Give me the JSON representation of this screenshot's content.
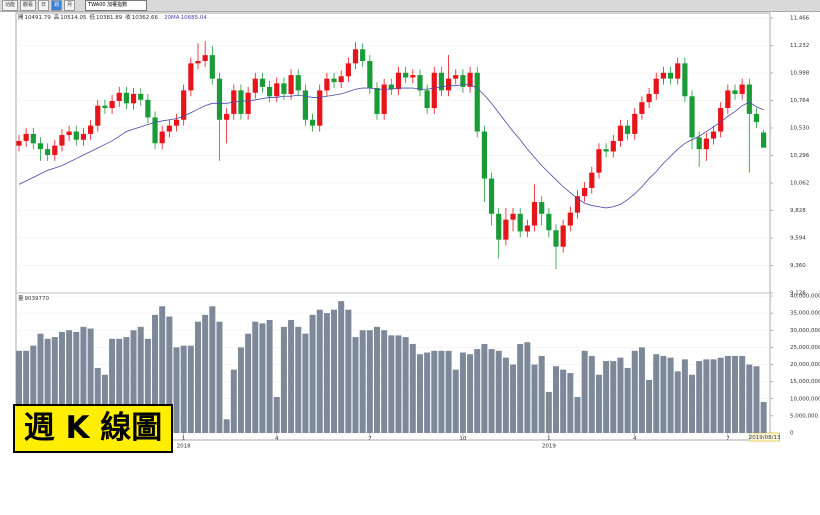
{
  "toolbar": {
    "buttons": [
      "功能",
      "觀看",
      "日",
      "週",
      "月"
    ],
    "symbol": "TWA00 加權指數"
  },
  "badge": "週 K 線圖",
  "chart_data": {
    "type": "candlestick",
    "categories": [
      null,
      null,
      null,
      null,
      null,
      null,
      null,
      null,
      null,
      null,
      null,
      null,
      null,
      null,
      null,
      null,
      null,
      null,
      null,
      null,
      null,
      null,
      null,
      "1",
      null,
      null,
      null,
      null,
      null,
      null,
      null,
      null,
      null,
      null,
      null,
      null,
      "4",
      null,
      null,
      null,
      null,
      null,
      null,
      null,
      null,
      null,
      null,
      null,
      null,
      "7",
      null,
      null,
      null,
      null,
      null,
      null,
      null,
      null,
      null,
      null,
      null,
      null,
      "10",
      null,
      null,
      null,
      null,
      null,
      null,
      null,
      null,
      null,
      null,
      null,
      "1",
      null,
      null,
      null,
      null,
      null,
      null,
      null,
      null,
      null,
      null,
      null,
      "4",
      null,
      null,
      null,
      null,
      null,
      null,
      null,
      null,
      null,
      null,
      null,
      null,
      "7",
      null,
      null,
      null,
      null,
      "2019/08/13"
    ],
    "year_labels": [
      {
        "category": 23,
        "label": "2018"
      },
      {
        "category": 74,
        "label": "2019"
      }
    ],
    "ohlc_labels": [
      "開",
      "高",
      "低",
      "收"
    ],
    "open": [
      10380,
      10420,
      10480,
      10400,
      10350,
      10300,
      10380,
      10470,
      10500,
      10430,
      10480,
      10550,
      10720,
      10700,
      10760,
      10830,
      10740,
      10820,
      10770,
      10620,
      10400,
      10500,
      10550,
      10600,
      10850,
      11080,
      11100,
      11150,
      10950,
      10600,
      10650,
      10850,
      10650,
      10830,
      10950,
      10880,
      10800,
      10910,
      10820,
      10980,
      10850,
      10600,
      10550,
      10850,
      10950,
      10920,
      10970,
      11080,
      11200,
      11100,
      10870,
      10650,
      10900,
      10860,
      11000,
      10960,
      10980,
      10850,
      10700,
      11000,
      10850,
      10950,
      10980,
      10880,
      11000,
      10500,
      10100,
      9800,
      9580,
      9750,
      9800,
      9650,
      9700,
      9900,
      9800,
      9660,
      9520,
      9700,
      9810,
      9950,
      10020,
      10150,
      10350,
      10330,
      10420,
      10550,
      10480,
      10650,
      10750,
      10820,
      10950,
      11000,
      10950,
      11080,
      10800,
      10450,
      10350,
      10440,
      10500,
      10700,
      10850,
      10820,
      10900,
      10650,
      10491.79
    ],
    "high": [
      10470,
      10530,
      10530,
      10450,
      10400,
      10430,
      10520,
      10550,
      10550,
      10530,
      10600,
      10770,
      10770,
      10810,
      10880,
      10880,
      10870,
      10870,
      10820,
      10670,
      10550,
      10600,
      10650,
      10900,
      11130,
      11250,
      11270,
      11230,
      11000,
      10700,
      10900,
      10900,
      10880,
      11000,
      11000,
      10930,
      10960,
      10960,
      11030,
      11030,
      10900,
      10650,
      10900,
      11000,
      11000,
      11020,
      11130,
      11260,
      11250,
      11150,
      10920,
      10950,
      10950,
      11050,
      11050,
      11030,
      11030,
      10900,
      11050,
      11050,
      11150,
      11030,
      11030,
      11050,
      11050,
      10550,
      10150,
      9850,
      9850,
      9850,
      9850,
      9750,
      10050,
      9950,
      9850,
      9710,
      9750,
      9860,
      10000,
      10070,
      10200,
      10400,
      10400,
      10470,
      10600,
      10600,
      10700,
      10800,
      10870,
      11000,
      11050,
      11050,
      11130,
      11130,
      10850,
      10500,
      10490,
      10550,
      10750,
      10900,
      10900,
      10950,
      10950,
      10700,
      10514.05
    ],
    "low": [
      10330,
      10370,
      10350,
      10250,
      10250,
      10250,
      10330,
      10420,
      10380,
      10380,
      10430,
      10500,
      10650,
      10650,
      10710,
      10690,
      10690,
      10720,
      10570,
      10350,
      10350,
      10450,
      10500,
      10550,
      10800,
      11030,
      11050,
      10900,
      10250,
      10400,
      10600,
      10600,
      10600,
      10780,
      10830,
      10750,
      10750,
      10770,
      10770,
      10800,
      10550,
      10500,
      10500,
      10800,
      10870,
      10870,
      10920,
      11030,
      11050,
      10820,
      10600,
      10600,
      10810,
      10810,
      10910,
      10910,
      10800,
      10650,
      10650,
      10800,
      10800,
      10900,
      10830,
      10830,
      10450,
      9900,
      9700,
      9420,
      9530,
      9650,
      9600,
      9600,
      9650,
      9700,
      9600,
      9330,
      9470,
      9650,
      9760,
      9900,
      9970,
      10100,
      10280,
      10280,
      10370,
      10430,
      10430,
      10600,
      10700,
      10770,
      10900,
      10900,
      10900,
      10750,
      10350,
      10200,
      10250,
      10390,
      10450,
      10650,
      10770,
      10770,
      10150,
      10530,
      10381.89
    ],
    "close": [
      10420,
      10480,
      10400,
      10350,
      10300,
      10380,
      10470,
      10500,
      10430,
      10480,
      10550,
      10720,
      10700,
      10760,
      10830,
      10740,
      10820,
      10770,
      10620,
      10400,
      10500,
      10550,
      10600,
      10850,
      11080,
      11100,
      11150,
      10950,
      10600,
      10650,
      10850,
      10650,
      10830,
      10950,
      10880,
      10800,
      10910,
      10820,
      10980,
      10850,
      10600,
      10550,
      10850,
      10950,
      10920,
      10970,
      11080,
      11200,
      11100,
      10870,
      10650,
      10900,
      10860,
      11000,
      10960,
      10980,
      10850,
      10700,
      11000,
      10850,
      10950,
      10980,
      10880,
      11000,
      10500,
      10100,
      9800,
      9580,
      9750,
      9800,
      9650,
      9700,
      9900,
      9800,
      9660,
      9520,
      9700,
      9810,
      9950,
      10020,
      10150,
      10350,
      10330,
      10420,
      10550,
      10480,
      10650,
      10750,
      10820,
      10950,
      11000,
      10950,
      11080,
      10800,
      10450,
      10350,
      10440,
      10500,
      10700,
      10850,
      10820,
      10900,
      10650,
      10580,
      10362.66
    ],
    "up_color": "#e8141b",
    "down_color": "#1a9b38",
    "ylim": [
      9126,
      11466
    ],
    "yticks": [
      {
        "value": 9126,
        "label": "9,126"
      },
      {
        "value": 9360,
        "label": "9,360"
      },
      {
        "value": 9594,
        "label": "9,594"
      },
      {
        "value": 9828,
        "label": "9,828"
      },
      {
        "value": 10062,
        "label": "10,062"
      },
      {
        "value": 10296,
        "label": "10,296"
      },
      {
        "value": 10530,
        "label": "10,530"
      },
      {
        "value": 10764,
        "label": "10,764"
      },
      {
        "value": 10998,
        "label": "10,998"
      },
      {
        "value": 11232,
        "label": "11,232"
      },
      {
        "value": 11466,
        "label": "11,466"
      }
    ],
    "grid": true,
    "ma": {
      "name": "20MA",
      "color": "#4a4aa8",
      "values": [
        10050,
        10080,
        10110,
        10140,
        10170,
        10190,
        10210,
        10240,
        10270,
        10300,
        10330,
        10360,
        10390,
        10420,
        10460,
        10500,
        10520,
        10540,
        10560,
        10580,
        10590,
        10600,
        10610,
        10630,
        10660,
        10690,
        10720,
        10740,
        10740,
        10740,
        10750,
        10760,
        10760,
        10770,
        10780,
        10790,
        10790,
        10800,
        10800,
        10810,
        10800,
        10790,
        10790,
        10800,
        10810,
        10820,
        10840,
        10860,
        10870,
        10870,
        10860,
        10860,
        10860,
        10870,
        10870,
        10870,
        10860,
        10860,
        10870,
        10880,
        10890,
        10890,
        10900,
        10900,
        10870,
        10810,
        10740,
        10660,
        10580,
        10500,
        10430,
        10350,
        10280,
        10210,
        10150,
        10090,
        10030,
        9980,
        9930,
        9890,
        9870,
        9860,
        9850,
        9860,
        9880,
        9920,
        9970,
        10030,
        10100,
        10160,
        10230,
        10290,
        10350,
        10400,
        10430,
        10460,
        10500,
        10540,
        10580,
        10630,
        10670,
        10720,
        10750,
        10710,
        10685.04
      ]
    },
    "volume": {
      "name": "量",
      "color": "#7d8899",
      "values": [
        24000000,
        24000000,
        25500000,
        29000000,
        27500000,
        28000000,
        29500000,
        30000000,
        29500000,
        31000000,
        30500000,
        19000000,
        17000000,
        27500000,
        27500000,
        28000000,
        30000000,
        31000000,
        27500000,
        34500000,
        37000000,
        34000000,
        25000000,
        25500000,
        25500000,
        32500000,
        34500000,
        37000000,
        32500000,
        4000000,
        18500000,
        25000000,
        29000000,
        32500000,
        32000000,
        33000000,
        10500000,
        31000000,
        33000000,
        31000000,
        29000000,
        34500000,
        36000000,
        35000000,
        36000000,
        38500000,
        36000000,
        28000000,
        30000000,
        30000000,
        31000000,
        30000000,
        28500000,
        28500000,
        28000000,
        26000000,
        23000000,
        23500000,
        24000000,
        24000000,
        24000000,
        18500000,
        23500000,
        23000000,
        24500000,
        26000000,
        24500000,
        24000000,
        22000000,
        20000000,
        26000000,
        26500000,
        20000000,
        22500000,
        12000000,
        19500000,
        18500000,
        17500000,
        10500000,
        24000000,
        22500000,
        17000000,
        21000000,
        21000000,
        22000000,
        19000000,
        24000000,
        25000000,
        15500000,
        23000000,
        22500000,
        22000000,
        18000000,
        21500000,
        17000000,
        21000000,
        21500000,
        21500000,
        22000000,
        22500000,
        22500000,
        22500000,
        20000000,
        19500000,
        9039770
      ],
      "ylim": [
        0,
        40000000
      ],
      "yticks": [
        0,
        {
          "value": 5000000,
          "label": "5,000,000"
        },
        {
          "value": 10000000,
          "label": "10,000,000"
        },
        {
          "value": 15000000,
          "label": "15,000,000"
        },
        {
          "value": 20000000,
          "label": "20,000,000"
        },
        {
          "value": 25000000,
          "label": "25,000,000"
        },
        {
          "value": 30000000,
          "label": "30,000,000"
        },
        {
          "value": 35000000,
          "label": "35,000,000"
        },
        {
          "value": 40000000,
          "label": "40,000,000"
        }
      ]
    }
  }
}
